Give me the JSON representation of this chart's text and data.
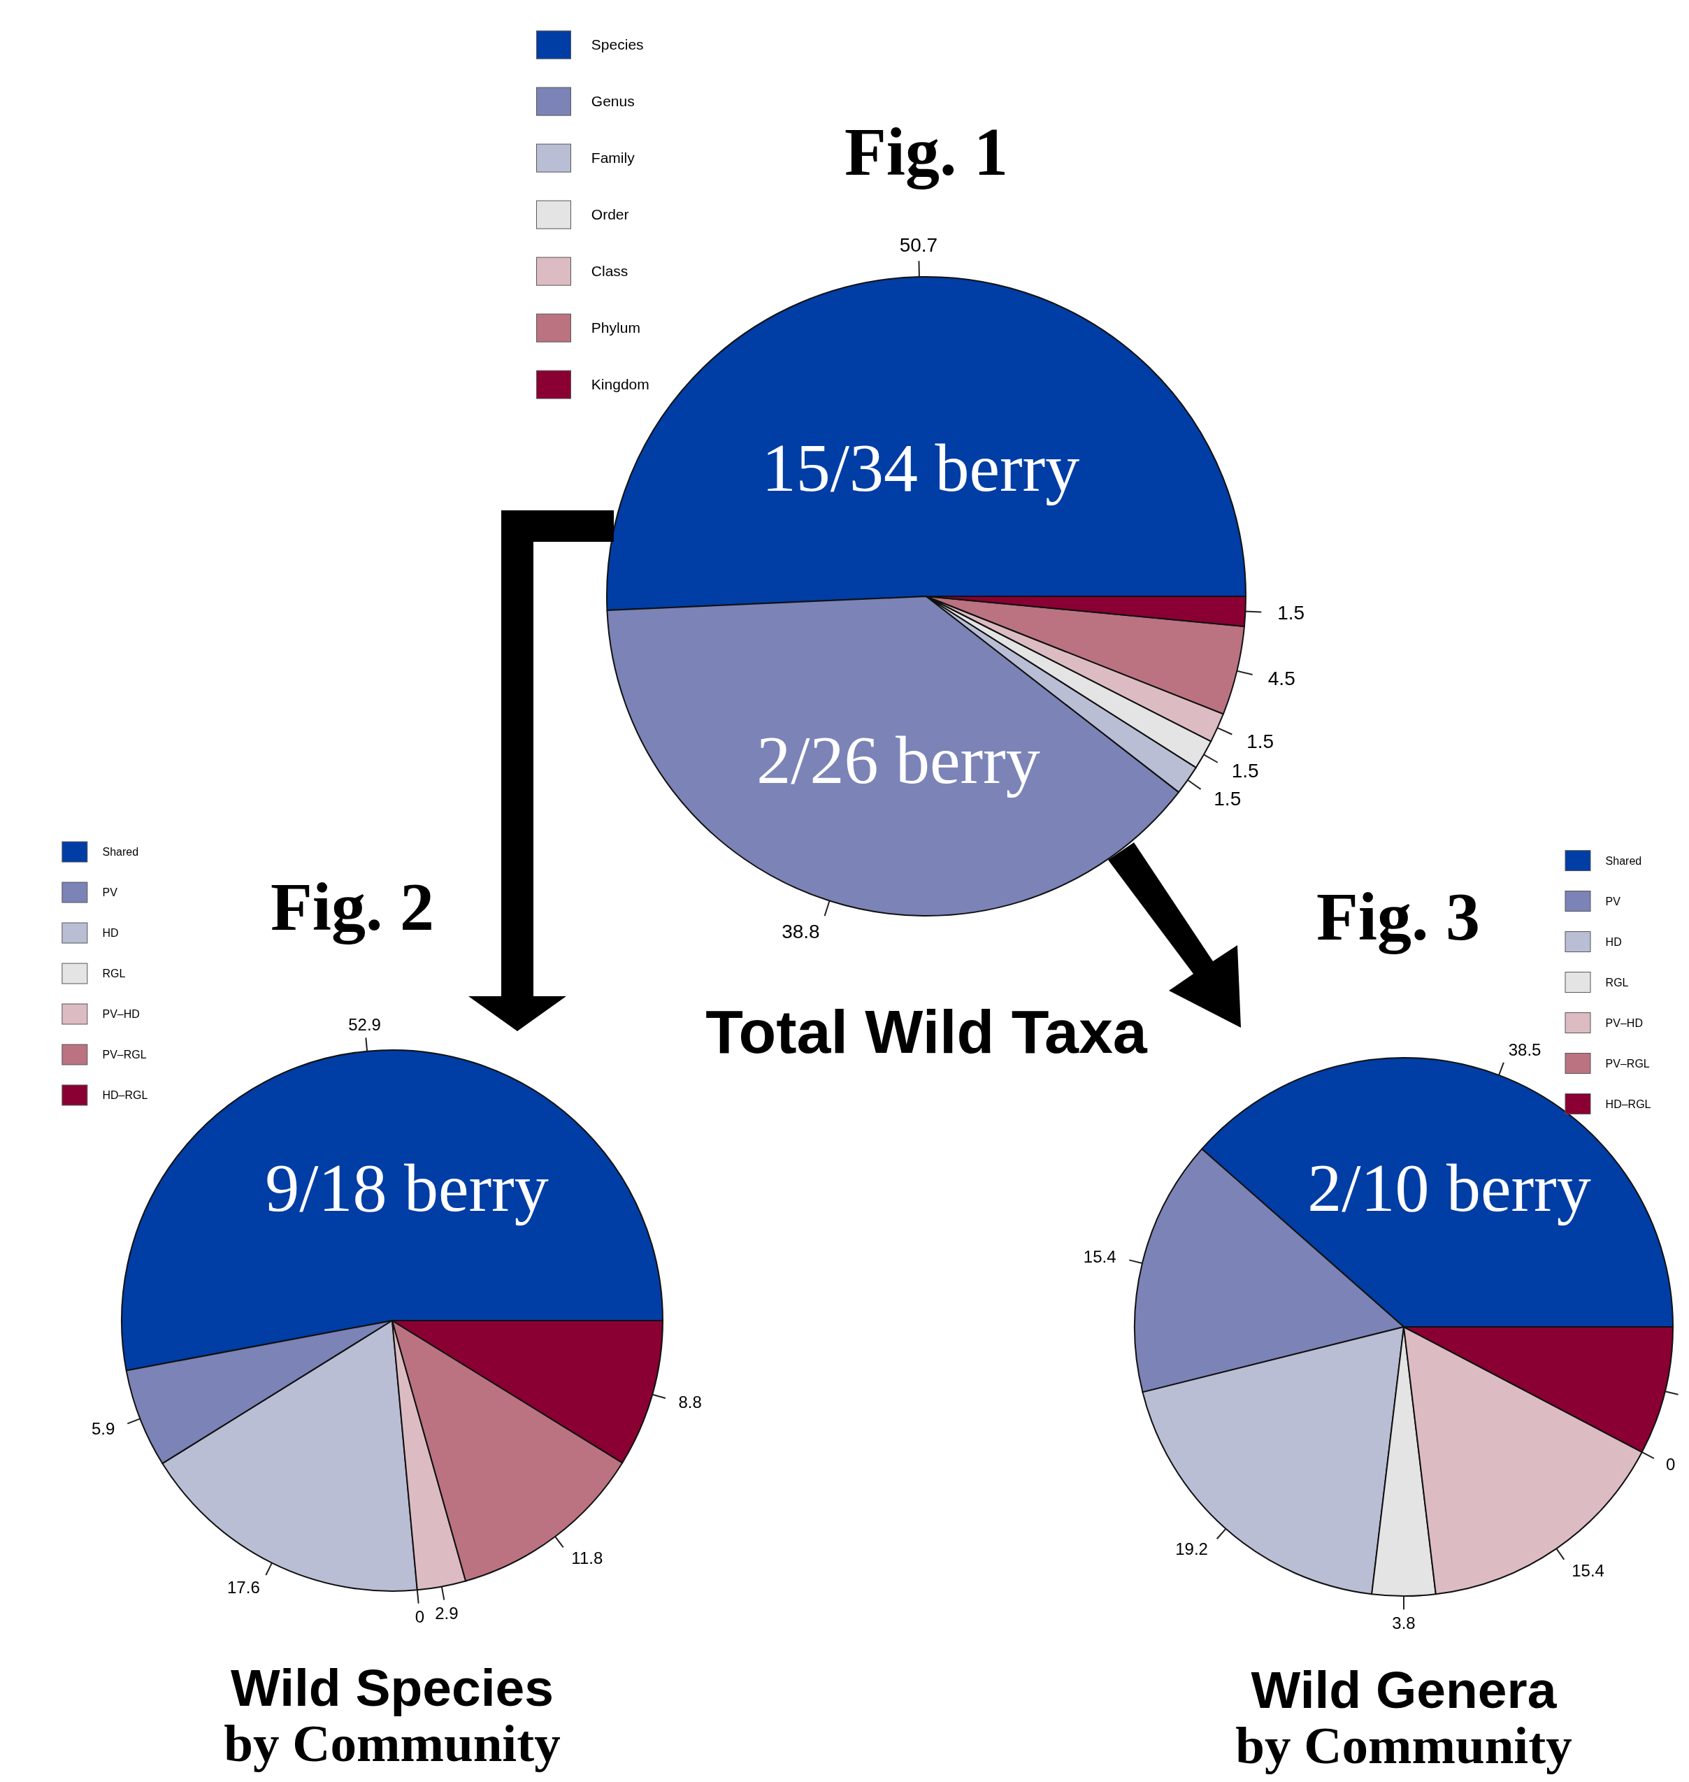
{
  "chart_data": [
    {
      "type": "pie",
      "title": "Fig. 1",
      "subtitle": "Total Wild Taxa",
      "categories": [
        "Species",
        "Genus",
        "Family",
        "Order",
        "Class",
        "Phylum",
        "Kingdom"
      ],
      "values": [
        50.7,
        38.8,
        1.5,
        1.5,
        1.5,
        4.5,
        1.5
      ],
      "colors": [
        "#003da5",
        "#7b83b7",
        "#b9bed5",
        "#e4e4e4",
        "#dcbcc2",
        "#bb7381",
        "#8a0033"
      ],
      "data_labels": true,
      "legend": "top left",
      "annotations": [
        "15/34 berry",
        "2/26 berry"
      ]
    },
    {
      "type": "pie",
      "title": "Fig. 2",
      "subtitle": "Wild Species\nby Community",
      "categories": [
        "Shared",
        "PV",
        "HD",
        "RGL",
        "PV–HD",
        "PV–RGL",
        "HD–RGL"
      ],
      "values": [
        52.9,
        5.9,
        17.6,
        0,
        2.9,
        11.8,
        8.8
      ],
      "value_labels": [
        "52.9",
        "5.9",
        "17.6",
        "0",
        "2.9",
        "11.8",
        "8.8"
      ],
      "colors": [
        "#003da5",
        "#7b83b7",
        "#b9bed5",
        "#e4e4e4",
        "#dcbcc2",
        "#bb7381",
        "#8a0033"
      ],
      "legend": "top left",
      "annotations": [
        "9/18 berry"
      ]
    },
    {
      "type": "pie",
      "title": "Fig. 3",
      "subtitle": "Wild Genera\nby Community",
      "categories": [
        "Shared",
        "PV",
        "HD",
        "RGL",
        "PV–HD",
        "PV–RGL",
        "HD–RGL"
      ],
      "values": [
        38.5,
        15.4,
        19.2,
        3.8,
        15.4,
        0,
        7.7
      ],
      "value_labels": [
        "38.5",
        "15.4",
        "19.2",
        "3.8",
        "15.4",
        "0",
        null
      ],
      "colors": [
        "#003da5",
        "#7b83b7",
        "#b9bed5",
        "#e4e4e4",
        "#dcbcc2",
        "#bb7381",
        "#8a0033"
      ],
      "legend": "top right",
      "annotations": [
        "2/10 berry"
      ]
    }
  ]
}
